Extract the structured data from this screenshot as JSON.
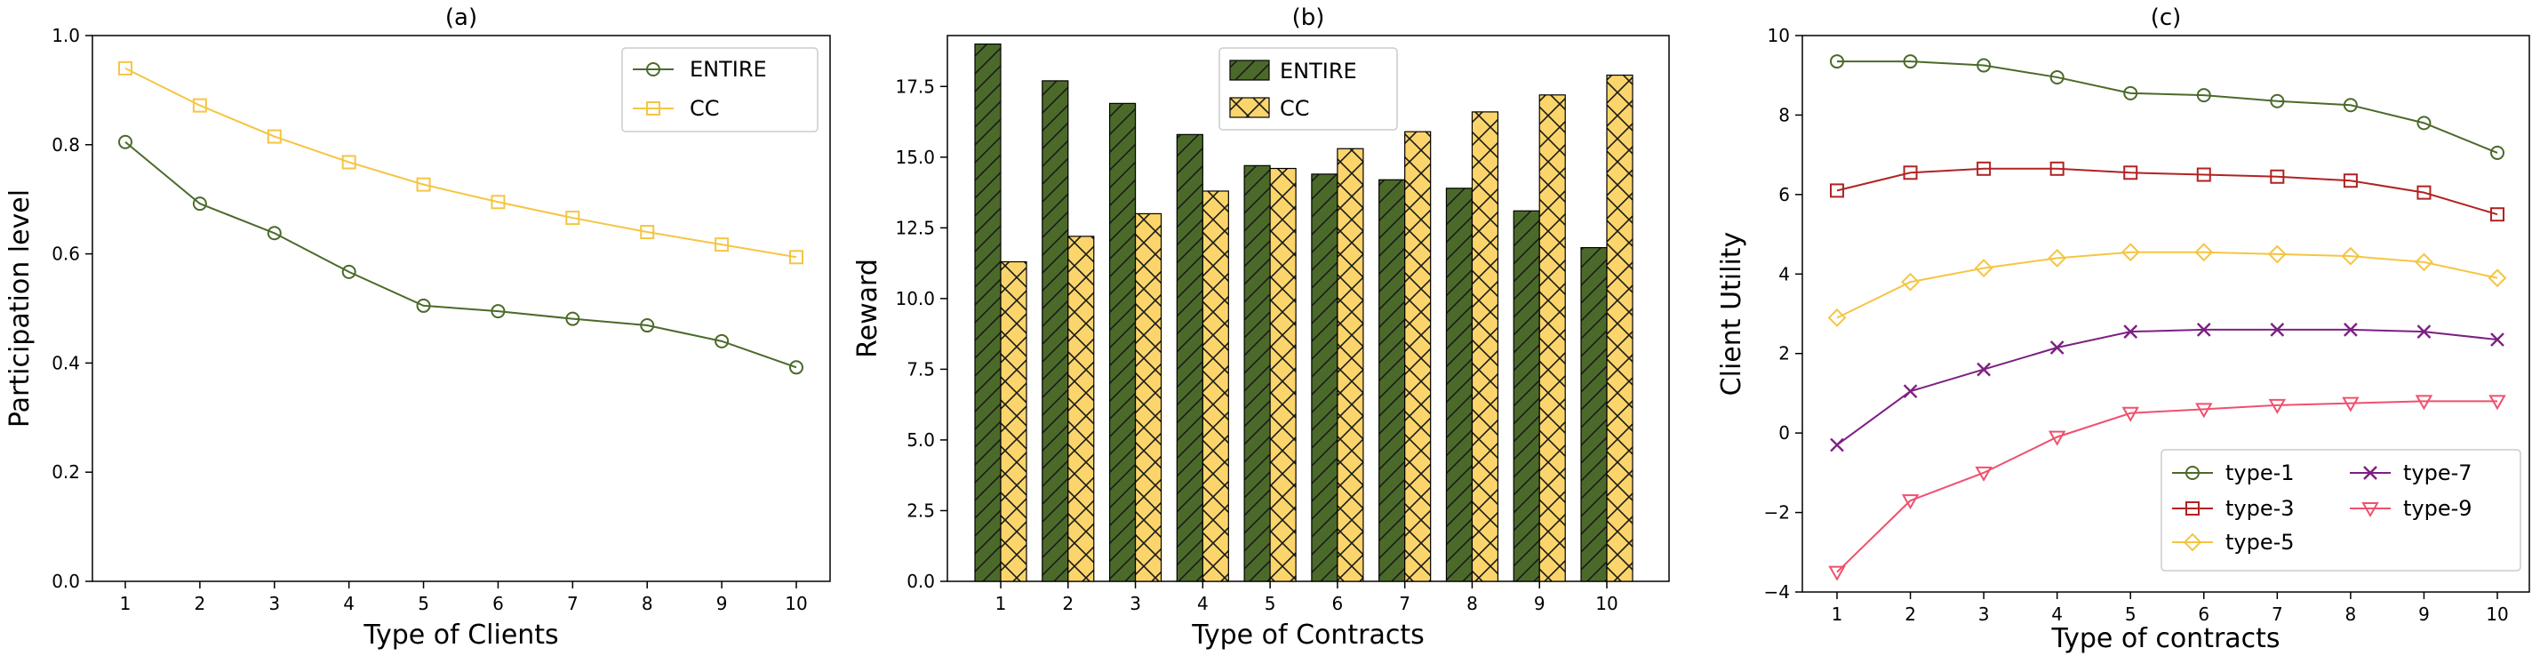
{
  "chart_data": [
    {
      "type": "line",
      "panel_title": "(a)",
      "xlabel": "Type of Clients",
      "ylabel": "Participation level",
      "x": [
        1,
        2,
        3,
        4,
        5,
        6,
        7,
        8,
        9,
        10
      ],
      "xticks": [
        "1",
        "2",
        "3",
        "4",
        "5",
        "6",
        "7",
        "8",
        "9",
        "10"
      ],
      "ylim": [
        0,
        1.0
      ],
      "yticks": [
        "0.0",
        "0.2",
        "0.4",
        "0.6",
        "0.8",
        "1.0"
      ],
      "legend": "top-right",
      "series": [
        {
          "name": "ENTIRE",
          "color": "#4b6a2a",
          "marker": "circle",
          "values": [
            0.805,
            0.692,
            0.638,
            0.567,
            0.505,
            0.495,
            0.481,
            0.469,
            0.44,
            0.392
          ]
        },
        {
          "name": "CC",
          "color": "#f5c542",
          "marker": "square",
          "values": [
            0.94,
            0.872,
            0.815,
            0.768,
            0.727,
            0.695,
            0.666,
            0.64,
            0.617,
            0.594
          ]
        }
      ]
    },
    {
      "type": "bar",
      "panel_title": "(b)",
      "xlabel": "Type of Contracts",
      "ylabel": "Reward",
      "categories": [
        "1",
        "2",
        "3",
        "4",
        "5",
        "6",
        "7",
        "8",
        "9",
        "10"
      ],
      "ylim": [
        0,
        19.3
      ],
      "yticks": [
        "0.0",
        "2.5",
        "5.0",
        "7.5",
        "10.0",
        "12.5",
        "15.0",
        "17.5"
      ],
      "legend": "top-center",
      "series": [
        {
          "name": "ENTIRE",
          "color": "#4b6a2a",
          "hatch": "/",
          "values": [
            19.0,
            17.7,
            16.9,
            15.8,
            14.7,
            14.4,
            14.2,
            13.9,
            13.1,
            11.8
          ]
        },
        {
          "name": "CC",
          "color": "#fbd56b",
          "hatch": "x",
          "values": [
            11.3,
            12.2,
            13.0,
            13.8,
            14.6,
            15.3,
            15.9,
            16.6,
            17.2,
            17.9
          ]
        }
      ]
    },
    {
      "type": "line",
      "panel_title": "(c)",
      "xlabel": "Type of contracts",
      "ylabel": "Client Utility",
      "x": [
        1,
        2,
        3,
        4,
        5,
        6,
        7,
        8,
        9,
        10
      ],
      "xticks": [
        "1",
        "2",
        "3",
        "4",
        "5",
        "6",
        "7",
        "8",
        "9",
        "10"
      ],
      "ylim": [
        -4,
        10
      ],
      "yticks": [
        "−4",
        "−2",
        "0",
        "2",
        "4",
        "6",
        "8",
        "10"
      ],
      "legend": "bottom-right",
      "series": [
        {
          "name": "type-1",
          "color": "#4b6a2a",
          "marker": "circle",
          "values": [
            9.35,
            9.35,
            9.25,
            8.95,
            8.55,
            8.5,
            8.35,
            8.25,
            7.8,
            7.05
          ]
        },
        {
          "name": "type-3",
          "color": "#b22222",
          "marker": "square",
          "values": [
            6.1,
            6.55,
            6.65,
            6.65,
            6.55,
            6.5,
            6.45,
            6.35,
            6.05,
            5.5
          ]
        },
        {
          "name": "type-5",
          "color": "#f5c542",
          "marker": "diamond",
          "values": [
            2.9,
            3.8,
            4.15,
            4.4,
            4.55,
            4.55,
            4.5,
            4.45,
            4.3,
            3.9
          ]
        },
        {
          "name": "type-7",
          "color": "#7b2082",
          "marker": "x",
          "values": [
            -0.3,
            1.05,
            1.6,
            2.15,
            2.55,
            2.6,
            2.6,
            2.6,
            2.55,
            2.35
          ]
        },
        {
          "name": "type-9",
          "color": "#f0506e",
          "marker": "triangle-down",
          "values": [
            -3.5,
            -1.7,
            -1.0,
            -0.1,
            0.5,
            0.6,
            0.7,
            0.75,
            0.8,
            0.8
          ]
        }
      ]
    }
  ]
}
